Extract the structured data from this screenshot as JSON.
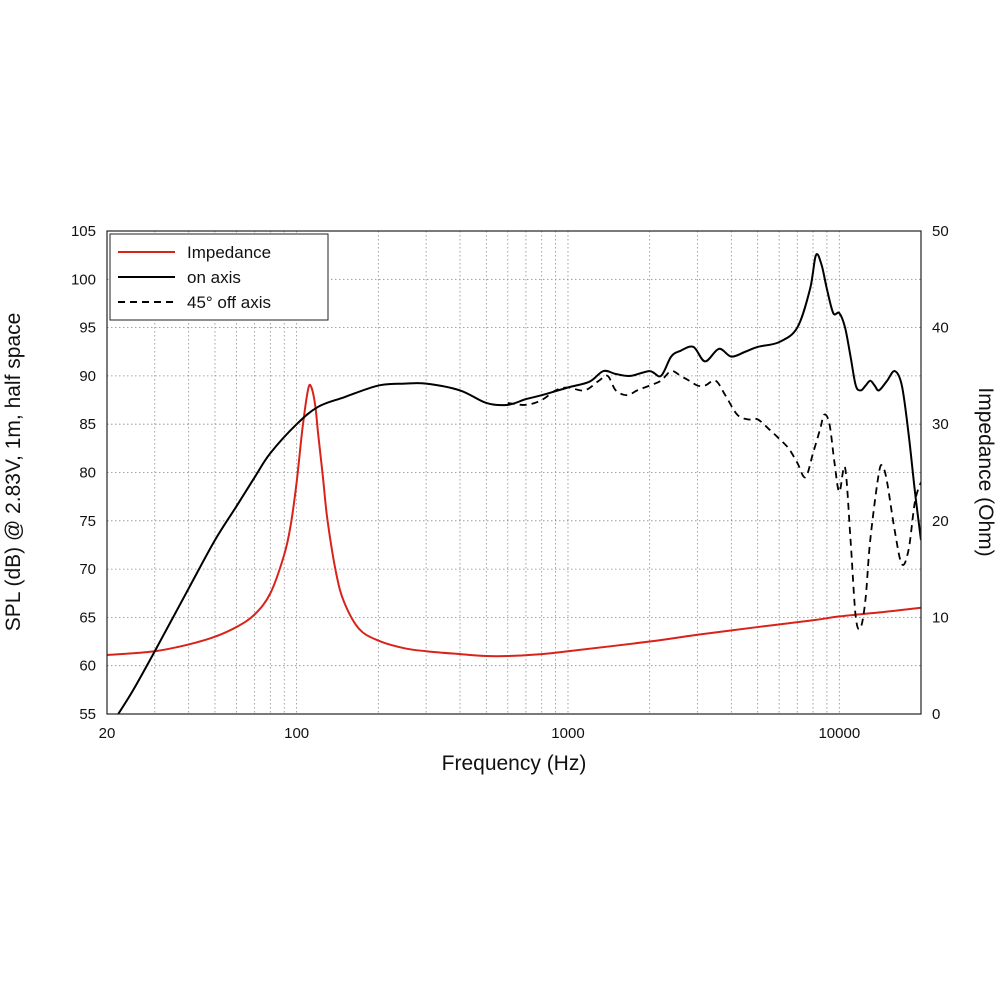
{
  "chart_data": {
    "type": "line",
    "title": "",
    "xlabel": "Frequency (Hz)",
    "ylabel_left": "SPL (dB) @ 2.83V, 1m, half space",
    "ylabel_right": "Impedance (Ohm)",
    "xscale": "log",
    "xlim": [
      20,
      20000
    ],
    "ylim_left": [
      55,
      105
    ],
    "ylim_right": [
      0,
      50
    ],
    "x_ticks": [
      20,
      100,
      1000,
      10000
    ],
    "x_tick_labels": [
      "20",
      "100",
      "1000",
      "10000"
    ],
    "y_left_ticks": [
      55,
      60,
      65,
      70,
      75,
      80,
      85,
      90,
      95,
      100,
      105
    ],
    "y_right_ticks": [
      0,
      10,
      20,
      30,
      40,
      50
    ],
    "grid": true,
    "legend_position": "top-left",
    "colors": {
      "impedance": "#d9231a",
      "on_axis": "#000000",
      "off_axis": "#000000",
      "grid": "#8a8a8a"
    },
    "series": [
      {
        "name": "Impedance",
        "axis": "right",
        "style": "solid",
        "color": "#d9231a",
        "x": [
          20,
          30,
          40,
          50,
          60,
          70,
          80,
          90,
          95,
          100,
          105,
          110,
          113,
          117,
          120,
          125,
          130,
          140,
          150,
          170,
          200,
          250,
          300,
          400,
          500,
          600,
          800,
          1000,
          2000,
          3000,
          5000,
          8000,
          10000,
          15000,
          20000
        ],
        "values": [
          6.1,
          6.5,
          7.2,
          8.0,
          9.0,
          10.3,
          12.5,
          16.5,
          19.5,
          24.0,
          29.5,
          33.5,
          33.9,
          32.0,
          29.0,
          24.5,
          20.0,
          14.5,
          11.5,
          8.8,
          7.6,
          6.8,
          6.5,
          6.2,
          6.0,
          6.0,
          6.2,
          6.5,
          7.5,
          8.2,
          9.0,
          9.7,
          10.1,
          10.6,
          11.0
        ]
      },
      {
        "name": "on axis",
        "axis": "left",
        "style": "solid",
        "color": "#000000",
        "x": [
          22,
          25,
          30,
          40,
          50,
          60,
          70,
          80,
          100,
          120,
          150,
          200,
          250,
          300,
          400,
          500,
          600,
          700,
          800,
          1000,
          1200,
          1350,
          1500,
          1700,
          2000,
          2200,
          2400,
          2600,
          2900,
          3200,
          3600,
          4000,
          4500,
          5000,
          6000,
          7000,
          7800,
          8200,
          8600,
          9000,
          9500,
          10000,
          10500,
          11000,
          11500,
          12000,
          12500,
          13000,
          13500,
          14000,
          15000,
          16000,
          17000,
          18000,
          19000,
          20000
        ],
        "values": [
          55,
          57.5,
          61.5,
          68,
          73,
          76.5,
          79.5,
          82,
          85,
          86.8,
          87.8,
          89,
          89.2,
          89.2,
          88.5,
          87.2,
          87,
          87.6,
          88,
          88.8,
          89.4,
          90.5,
          90.2,
          90,
          90.5,
          90,
          92,
          92.6,
          93,
          91.5,
          92.8,
          92,
          92.5,
          93,
          93.5,
          95,
          99,
          102.5,
          101.5,
          99,
          96.5,
          96.5,
          95,
          92,
          89,
          88.5,
          89,
          89.5,
          89,
          88.5,
          89.5,
          90.5,
          89,
          84,
          78,
          73
        ]
      },
      {
        "name": "45° off axis",
        "axis": "left",
        "style": "dashed",
        "color": "#000000",
        "x": [
          600,
          700,
          800,
          900,
          1000,
          1150,
          1300,
          1400,
          1500,
          1650,
          1800,
          2000,
          2200,
          2400,
          2600,
          2800,
          3000,
          3200,
          3500,
          3800,
          4200,
          4600,
          5000,
          5500,
          6000,
          6500,
          7000,
          7500,
          8000,
          8500,
          8800,
          9200,
          9600,
          10000,
          10500,
          11000,
          11500,
          12000,
          12500,
          13000,
          14000,
          14500,
          15000,
          16000,
          17000,
          18000,
          19000,
          20000
        ],
        "values": [
          87.2,
          87,
          87.5,
          88.5,
          88.8,
          88.5,
          89.5,
          90,
          88.5,
          88,
          88.5,
          89,
          89.5,
          90.5,
          90,
          89.5,
          89,
          89,
          89.5,
          88,
          86,
          85.5,
          85.5,
          84.5,
          83.5,
          82.5,
          81,
          79.5,
          82,
          84.5,
          86,
          85,
          81,
          78,
          80.5,
          73,
          65,
          64,
          67,
          73,
          80,
          80.5,
          79,
          74,
          70.5,
          72,
          77,
          79
        ]
      }
    ]
  }
}
